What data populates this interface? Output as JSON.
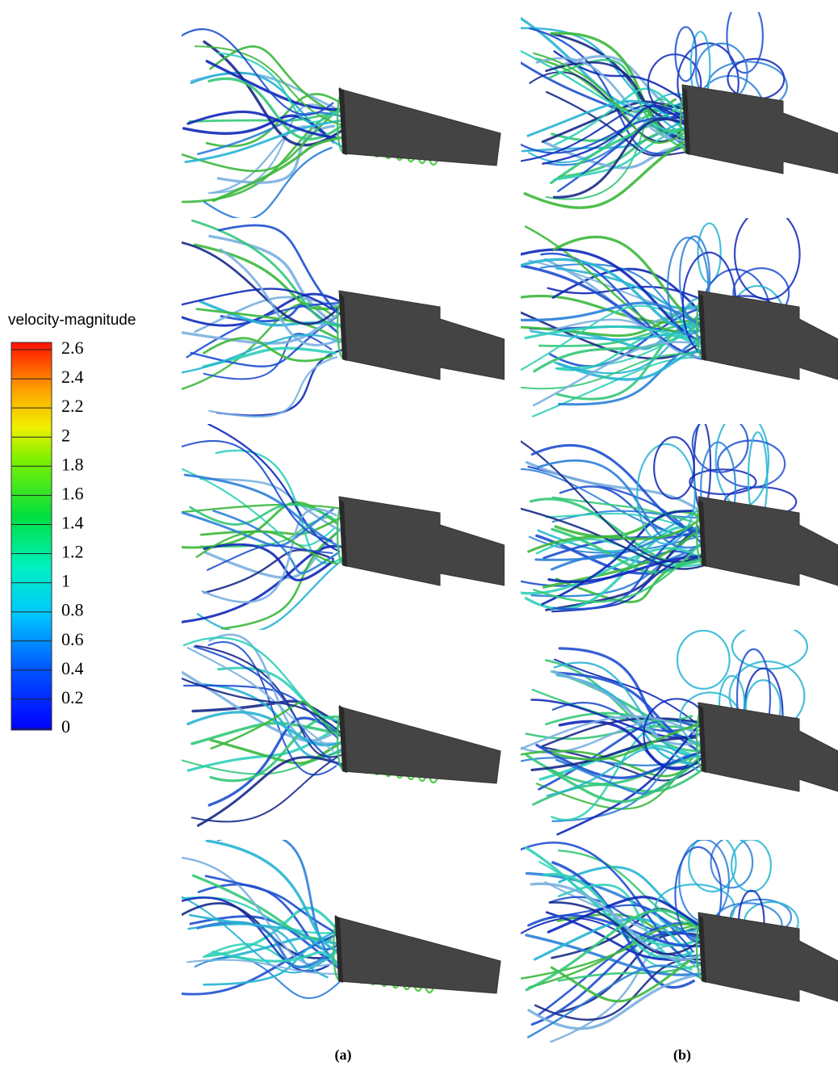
{
  "legend": {
    "title": "velocity-magnitude",
    "ticks": [
      0,
      0.2,
      0.4,
      0.6,
      0.8,
      1,
      1.2,
      1.4,
      1.6,
      1.8,
      2,
      2.2,
      2.4,
      2.6
    ]
  },
  "captions": [
    "(a)",
    "(b)"
  ]
}
